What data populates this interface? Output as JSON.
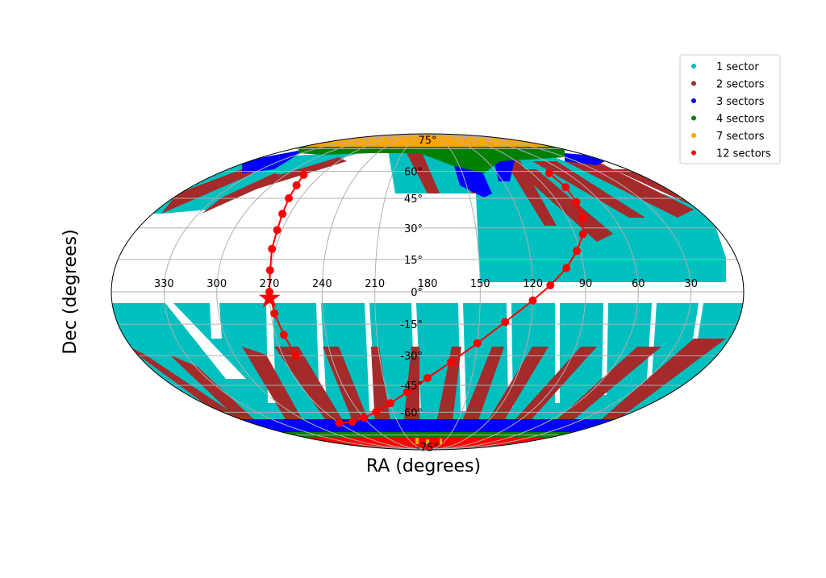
{
  "chart_data": {
    "type": "scatter",
    "projection": "mollweide",
    "xlabel": "RA (degrees)",
    "ylabel": "Dec (degrees)",
    "ra_tick_labels": [
      "330",
      "300",
      "270",
      "240",
      "210",
      "180",
      "150",
      "120",
      "90",
      "60",
      "30"
    ],
    "dec_tick_labels": [
      "75°",
      "60°",
      "45°",
      "30°",
      "15°",
      "0°",
      "-15°",
      "-30°",
      "-45°",
      "-60°",
      "-75°"
    ],
    "grid": true,
    "legend_position": "top-right",
    "legend": [
      {
        "label": "1 sector",
        "color": "#00bfbf"
      },
      {
        "label": "2 sectors",
        "color": "#a52a2a"
      },
      {
        "label": "3 sectors",
        "color": "#0000ff"
      },
      {
        "label": "4 sectors",
        "color": "#008000"
      },
      {
        "label": "7 sectors",
        "color": "#ffa500"
      },
      {
        "label": "12 sectors",
        "color": "#ff0000"
      }
    ],
    "ecliptic_points": [
      {
        "ra": 270,
        "dec": -66.6
      },
      {
        "ra": 255,
        "dec": -65.8
      },
      {
        "ra": 240,
        "dec": -63.5
      },
      {
        "ra": 225,
        "dec": -59.8
      },
      {
        "ra": 210,
        "dec": -54.8
      },
      {
        "ra": 195,
        "dec": -48.6
      },
      {
        "ra": 180,
        "dec": -41.2
      },
      {
        "ra": 165,
        "dec": -33.0
      },
      {
        "ra": 150,
        "dec": -24.0
      },
      {
        "ra": 135,
        "dec": -14.0
      },
      {
        "ra": 120,
        "dec": -4.0
      },
      {
        "ra": 110,
        "dec": 3.0
      },
      {
        "ra": 100,
        "dec": 11.0
      },
      {
        "ra": 92,
        "dec": 19.0
      },
      {
        "ra": 85,
        "dec": 27.0
      },
      {
        "ra": 80,
        "dec": 35.0
      },
      {
        "ra": 77,
        "dec": 43.0
      },
      {
        "ra": 75,
        "dec": 51.0
      },
      {
        "ra": 75,
        "dec": 59.0
      },
      {
        "ra": 285,
        "dec": 58.0
      },
      {
        "ra": 281,
        "dec": 52.0
      },
      {
        "ra": 278,
        "dec": 45.0
      },
      {
        "ra": 275,
        "dec": 37.0
      },
      {
        "ra": 273,
        "dec": 29.0
      },
      {
        "ra": 272,
        "dec": 20.0
      },
      {
        "ra": 270.5,
        "dec": 10.0
      },
      {
        "ra": 270,
        "dec": 0.0
      },
      {
        "ra": 268,
        "dec": -10.0
      },
      {
        "ra": 265,
        "dec": -20.0
      },
      {
        "ra": 262,
        "dec": -30.0
      }
    ],
    "pole_marker": {
      "ra": 270,
      "dec": -3
    }
  }
}
